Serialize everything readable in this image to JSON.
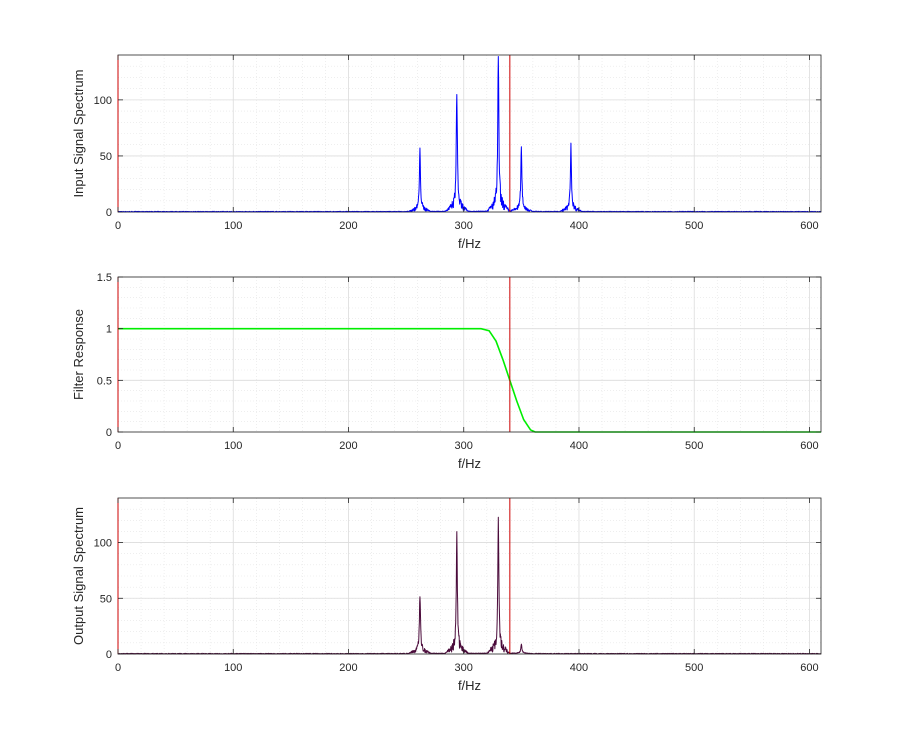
{
  "chart_data": [
    {
      "type": "line",
      "xlabel": "f/Hz",
      "ylabel": "Input Signal Spectrum",
      "xlim": [
        0,
        610
      ],
      "ylim": [
        0,
        140
      ],
      "xticks": [
        "0",
        "100",
        "200",
        "300",
        "400",
        "500",
        "600"
      ],
      "yticks": [
        "0",
        "50",
        "100"
      ],
      "grid": true,
      "minor_grid": true,
      "line_color": "#0000ff",
      "cutoff_line": {
        "x": 340,
        "color": "#cc0000"
      },
      "series": [
        {
          "peaks": [
            {
              "x": 262,
              "y": 51
            },
            {
              "x": 294,
              "y": 102
            },
            {
              "x": 330,
              "y": 128
            },
            {
              "x": 350,
              "y": 53
            },
            {
              "x": 393,
              "y": 55
            }
          ]
        }
      ]
    },
    {
      "type": "line",
      "xlabel": "f/Hz",
      "ylabel": "Filter Response",
      "xlim": [
        0,
        610
      ],
      "ylim": [
        0,
        1.5
      ],
      "xticks": [
        "0",
        "100",
        "200",
        "300",
        "400",
        "500",
        "600"
      ],
      "yticks": [
        "0",
        "0.5",
        "1",
        "1.5"
      ],
      "grid": true,
      "minor_grid": true,
      "line_color": "#00ee00",
      "cutoff_line": {
        "x": 340,
        "color": "#cc0000"
      },
      "series": [
        {
          "x": [
            0,
            300,
            315,
            322,
            328,
            334,
            340,
            346,
            352,
            358,
            362,
            610
          ],
          "y": [
            1.0,
            1.0,
            1.0,
            0.98,
            0.88,
            0.7,
            0.5,
            0.3,
            0.12,
            0.02,
            0.0,
            0.0
          ]
        }
      ]
    },
    {
      "type": "line",
      "xlabel": "f/Hz",
      "ylabel": "Output Signal Spectrum",
      "xlim": [
        0,
        610
      ],
      "ylim": [
        0,
        140
      ],
      "xticks": [
        "0",
        "100",
        "200",
        "300",
        "400",
        "500",
        "600"
      ],
      "yticks": [
        "0",
        "50",
        "100"
      ],
      "grid": true,
      "minor_grid": true,
      "line_color": "#4a0a3a",
      "cutoff_line": {
        "x": 340,
        "color": "#cc0000"
      },
      "series": [
        {
          "peaks": [
            {
              "x": 262,
              "y": 51
            },
            {
              "x": 294,
              "y": 101
            },
            {
              "x": 330,
              "y": 110
            },
            {
              "x": 350,
              "y": 8
            }
          ]
        }
      ]
    }
  ]
}
